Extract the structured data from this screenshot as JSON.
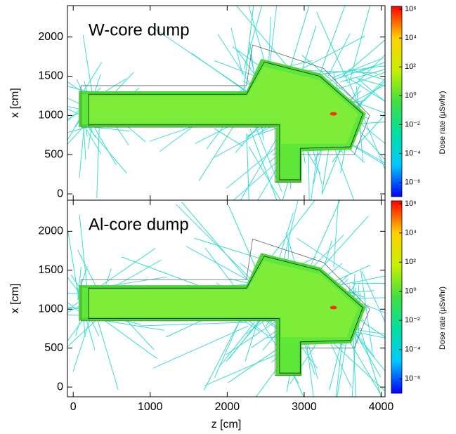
{
  "chart_data": [
    {
      "type": "heatmap",
      "annotation": "W-core dump",
      "ylabel": "x [cm]",
      "xlim": [
        -75,
        4050
      ],
      "ylim": [
        -80,
        2400
      ],
      "yticks": [
        0,
        500,
        1000,
        1500,
        2000
      ],
      "colorbar": {
        "label": "Dose rate (µSv/hr)",
        "scale": "log",
        "lim": [
          1e-07,
          1600000
        ],
        "ticks": [
          {
            "value": 1e-06,
            "label": "10⁻⁶"
          },
          {
            "value": 0.0001,
            "label": "10⁻⁴"
          },
          {
            "value": 0.01,
            "label": "10⁻²"
          },
          {
            "value": 1,
            "label": "10⁰"
          },
          {
            "value": 100,
            "label": "10²"
          },
          {
            "value": 10000,
            "label": "10⁴"
          },
          {
            "value": 1000000,
            "label": "10⁶"
          }
        ],
        "colors": [
          "#0000ff",
          "#00c8ff",
          "#00e0a0",
          "#40e040",
          "#c8f000",
          "#ffd000",
          "#ff0000"
        ]
      }
    },
    {
      "type": "heatmap",
      "annotation": "Al-core dump",
      "xlabel": "z [cm]",
      "ylabel": "x [cm]",
      "xlim": [
        -75,
        4050
      ],
      "ylim": [
        -125,
        2400
      ],
      "xticks": [
        0,
        1000,
        2000,
        3000,
        4000
      ],
      "yticks": [
        0,
        500,
        1000,
        1500,
        2000
      ],
      "colorbar": {
        "label": "Dose rate (µSv/hr)",
        "scale": "log",
        "lim": [
          1e-07,
          1600000
        ],
        "ticks": [
          {
            "value": 1e-06,
            "label": "10⁻⁶"
          },
          {
            "value": 0.0001,
            "label": "10⁻⁴"
          },
          {
            "value": 0.01,
            "label": "10⁻²"
          },
          {
            "value": 1,
            "label": "10⁰"
          },
          {
            "value": 100,
            "label": "10²"
          },
          {
            "value": 10000,
            "label": "10⁴"
          },
          {
            "value": 1000000,
            "label": "10⁶"
          }
        ],
        "colors": [
          "#0000ff",
          "#00c8ff",
          "#00e0a0",
          "#40e040",
          "#c8f000",
          "#ffd000",
          "#ff0000"
        ]
      }
    }
  ]
}
